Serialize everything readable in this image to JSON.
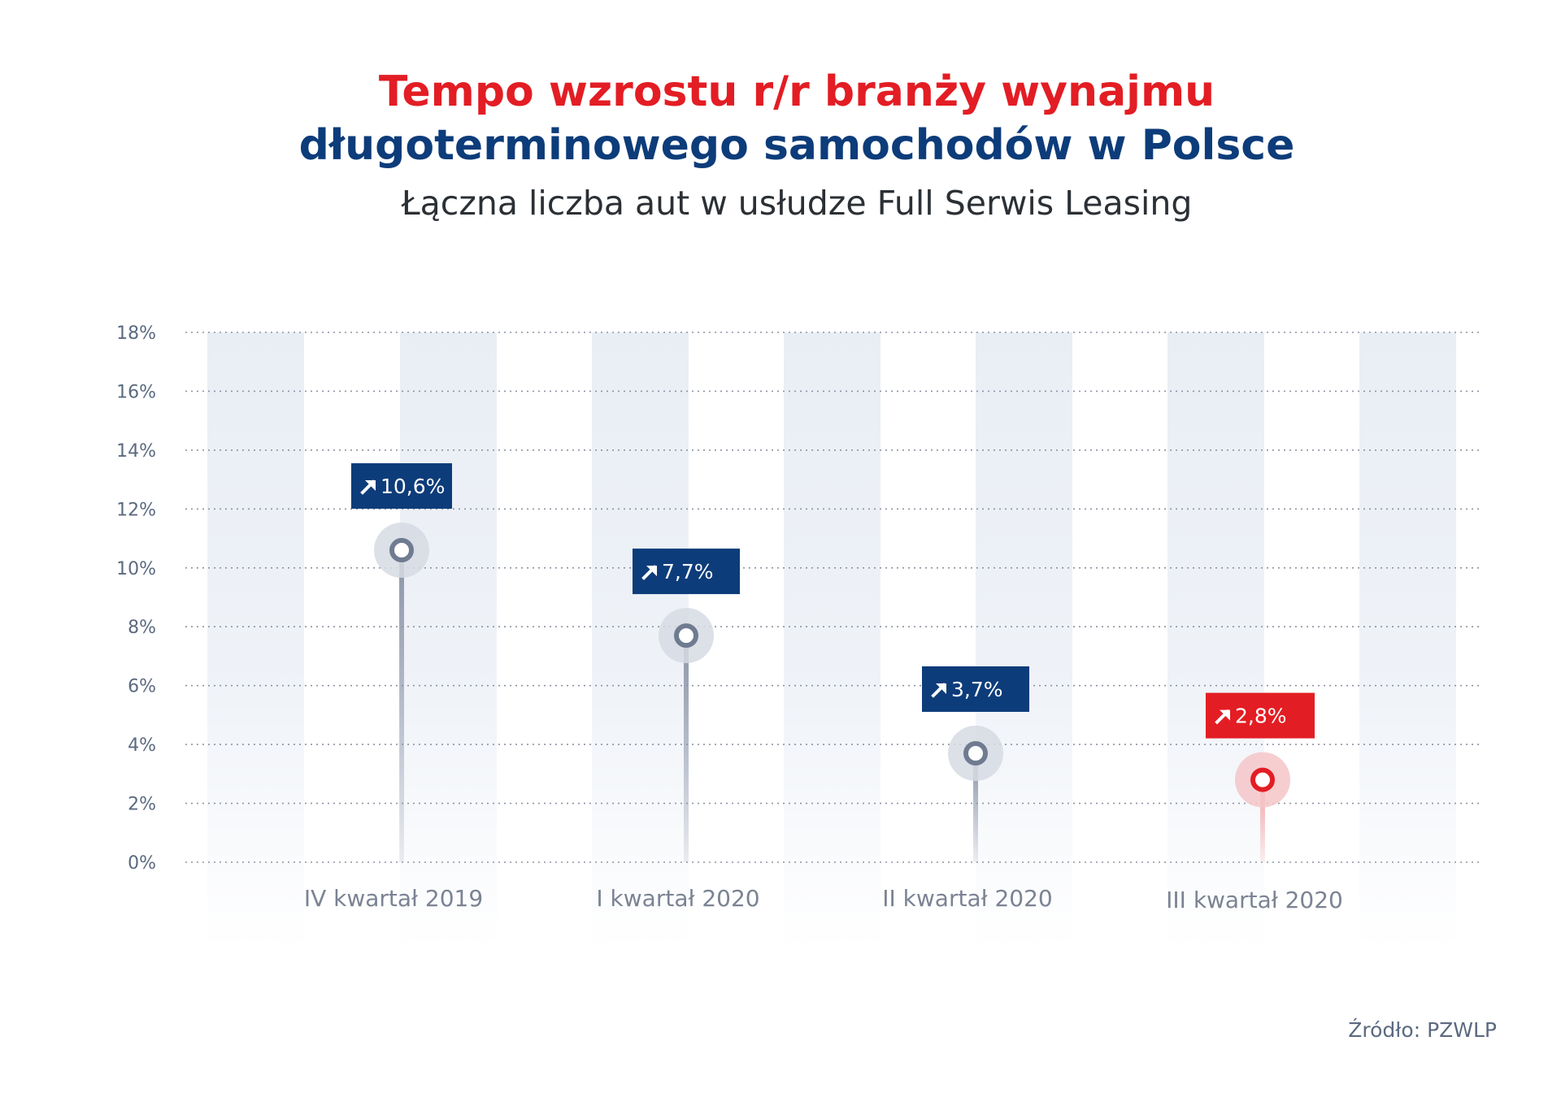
{
  "title": {
    "line1": "Tempo wzrostu r/r branży wynajmu",
    "line2": "długoterminowego samochodów w Polsce"
  },
  "subtitle": "Łączna liczba aut w usłudze Full Serwis Leasing",
  "source": "Źródło: PZWLP",
  "colors": {
    "title_red": "#e31d24",
    "title_blue": "#0d3c7a",
    "label_blue": "#0d3c7a",
    "label_red": "#e31d24",
    "band": "#e9eef5",
    "axis_text": "#5b6a80"
  },
  "chart_data": {
    "type": "lollipop",
    "categories": [
      "IV kwartał 2019",
      "I kwartał 2020",
      "II kwartał 2020",
      "III kwartał 2020"
    ],
    "values": [
      10.6,
      7.7,
      3.7,
      2.8
    ],
    "value_labels": [
      "10,6%",
      "7,7%",
      "3,7%",
      "2,8%"
    ],
    "highlight": [
      false,
      false,
      false,
      true
    ],
    "yticks": [
      "0%",
      "2%",
      "4%",
      "6%",
      "8%",
      "10%",
      "12%",
      "14%",
      "16%",
      "18%"
    ],
    "ylim": [
      0,
      18
    ],
    "grid": true,
    "icon": "arrow-up-right-icon"
  }
}
